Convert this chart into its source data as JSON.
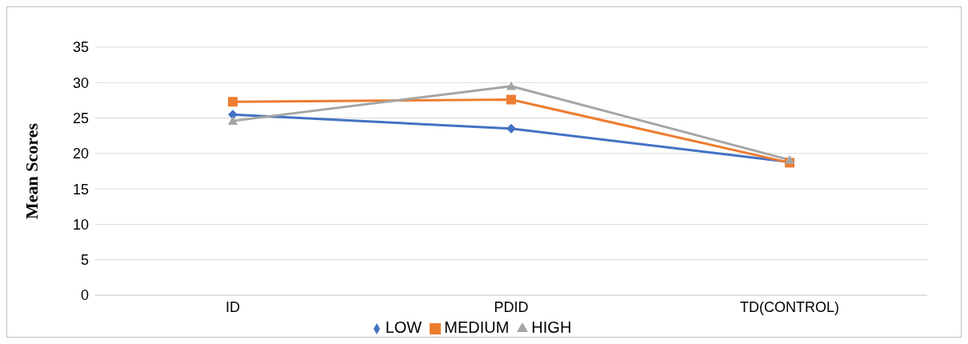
{
  "chart_data": {
    "type": "line",
    "ylabel": "Mean Scores",
    "categories": [
      "ID",
      "PDID",
      "TD(CONTROL)"
    ],
    "series": [
      {
        "name": "LOW",
        "color": "#4472c4",
        "marker": "diamond",
        "values": [
          25.5,
          23.5,
          18.8
        ]
      },
      {
        "name": "MEDIUM",
        "color": "#ed7d31",
        "marker": "square",
        "values": [
          27.3,
          27.6,
          18.7
        ]
      },
      {
        "name": "HIGH",
        "color": "#a5a5a5",
        "marker": "triangle",
        "values": [
          24.6,
          29.5,
          19.1
        ]
      }
    ],
    "ylim": [
      0,
      35
    ],
    "yticks": [
      0,
      5,
      10,
      15,
      20,
      25,
      30,
      35
    ],
    "grid": "y",
    "legend": "bottom",
    "line_style": "solid"
  }
}
